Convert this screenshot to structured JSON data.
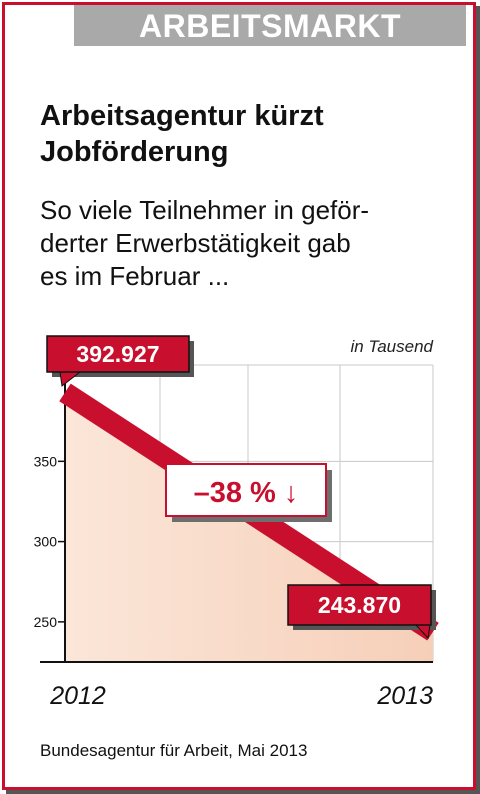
{
  "banner": "ARBEITSMARKT",
  "headline_line1": "Arbeitsagentur kürzt",
  "headline_line2": "Jobförderung",
  "subtitle_line1": "So viele Teilnehmer in geför-",
  "subtitle_line2": "derter Erwerbstätigkeit gab",
  "subtitle_line3": "es im Februar ...",
  "source": "Bundesagentur für Arbeit, Mai 2013",
  "colors": {
    "accent": "#c8102e",
    "banner_gray": "#a9a9a9",
    "area_fill": "#f8d8c4"
  },
  "chart_data": {
    "type": "line",
    "x": [
      "2012",
      "2013"
    ],
    "values": [
      392.927,
      243.87
    ],
    "value_labels": [
      "392.927",
      "243.870"
    ],
    "unit_label": "in Tausend",
    "y_ticks": [
      "250",
      "300",
      "350"
    ],
    "ylim": [
      225,
      410
    ],
    "change_label": "–38 % ↓",
    "grid": true
  }
}
